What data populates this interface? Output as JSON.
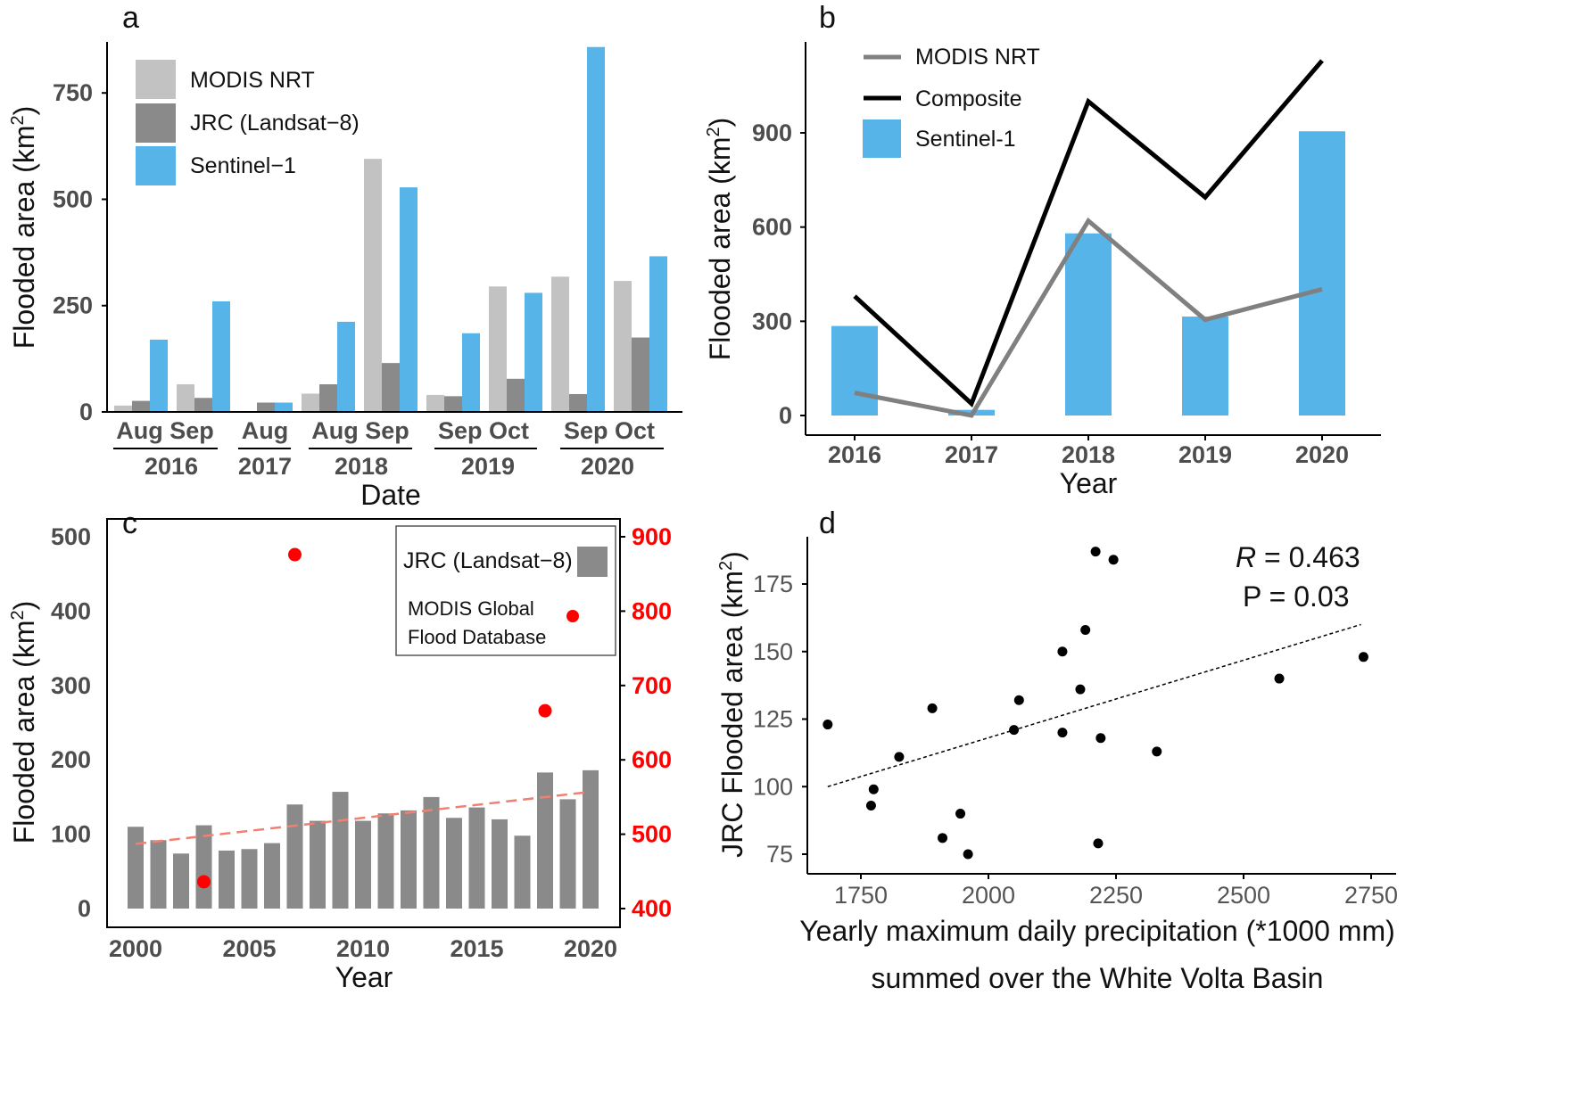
{
  "chart_data": [
    {
      "panel": "a",
      "type": "bar",
      "ylabel": "Flooded  area (km",
      "ylabel_sup": "2",
      "ylabel_close": ")",
      "xlabel": "Date",
      "ylim": [
        0,
        870
      ],
      "yticks": [
        0,
        250,
        500,
        750
      ],
      "legend": [
        "MODIS NRT",
        "JRC (Landsat−8)",
        "Sentinel−1"
      ],
      "colors": [
        "#c2c2c2",
        "#8a8a8a",
        "#56b4e9"
      ],
      "categories": [
        "Aug 2016",
        "Sep 2016",
        "Aug 2017",
        "Aug 2018",
        "Sep 2018",
        "Sep 2019",
        "Oct 2019",
        "Sep 2020",
        "Oct 2020"
      ],
      "series": [
        {
          "name": "MODIS NRT",
          "values": [
            15,
            65,
            0,
            43,
            595,
            40,
            295,
            318,
            308
          ]
        },
        {
          "name": "JRC (Landsat-8)",
          "values": [
            26,
            33,
            22,
            65,
            115,
            37,
            78,
            42,
            175
          ]
        },
        {
          "name": "Sentinel-1",
          "values": [
            170,
            260,
            22,
            212,
            528,
            185,
            280,
            858,
            366
          ]
        }
      ],
      "month_labels": [
        "Aug Sep",
        "Aug",
        "Aug Sep",
        "Sep Oct",
        "Sep Oct"
      ],
      "year_labels": [
        "2016",
        "2017",
        "2018",
        "2019",
        "2020"
      ]
    },
    {
      "panel": "b",
      "type": "bar+line",
      "ylabel": "Flooded area (km",
      "ylabel_sup": "2",
      "ylabel_close": ")",
      "xlabel": "Year",
      "ylim": [
        -30,
        1170
      ],
      "yticks": [
        0,
        300,
        600,
        900
      ],
      "categories": [
        "2016",
        "2017",
        "2018",
        "2019",
        "2020"
      ],
      "legend": [
        "MODIS NRT",
        "Composite",
        "Sentinel-1"
      ],
      "series": [
        {
          "name": "Sentinel-1",
          "kind": "bar",
          "color": "#56b4e9",
          "values": [
            285,
            18,
            580,
            315,
            905
          ]
        },
        {
          "name": "MODIS NRT",
          "kind": "line",
          "color": "#808080",
          "values": [
            72,
            0,
            620,
            305,
            402
          ]
        },
        {
          "name": "Composite",
          "kind": "line",
          "color": "#000000",
          "values": [
            380,
            38,
            1000,
            695,
            1130
          ]
        }
      ]
    },
    {
      "panel": "c",
      "type": "bar+scatter",
      "ylabel": "Flooded area (km",
      "ylabel_sup": "2",
      "ylabel_close": ")",
      "xlabel": "Year",
      "ylim": [
        -15,
        505
      ],
      "yticks": [
        0,
        100,
        200,
        300,
        400,
        500
      ],
      "y2ticks": [
        400,
        500,
        600,
        700,
        800,
        900
      ],
      "xticks": [
        2000,
        2005,
        2010,
        2015,
        2020
      ],
      "legend": [
        "JRC (Landsat−8)",
        "MODIS Global",
        "Flood Database"
      ],
      "bars": {
        "name": "JRC (Landsat-8)",
        "color": "#8a8a8a",
        "x": [
          2000,
          2001,
          2002,
          2003,
          2004,
          2005,
          2006,
          2007,
          2008,
          2009,
          2010,
          2011,
          2012,
          2013,
          2014,
          2015,
          2016,
          2017,
          2018,
          2019,
          2020
        ],
        "values": [
          110,
          92,
          74,
          112,
          78,
          80,
          88,
          140,
          118,
          157,
          118,
          128,
          132,
          150,
          122,
          136,
          120,
          98,
          183,
          147,
          186
        ]
      },
      "points": {
        "name": "MODIS Global Flood Database",
        "color": "#ff0000",
        "axis": "secondary",
        "x": [
          2003,
          2007,
          2018,
          2019
        ],
        "values": [
          436,
          876,
          666,
          793
        ]
      },
      "trend": {
        "color": "#f08070",
        "x": [
          2000,
          2020
        ],
        "values": [
          87,
          157
        ]
      }
    },
    {
      "panel": "d",
      "type": "scatter",
      "ylabel": "JRC Flooded area (km",
      "ylabel_sup": "2",
      "ylabel_close": ")",
      "xlabel": "Yearly maximum daily precipitation (*1000 mm)",
      "xlabel2": "summed over the White Volta Basin",
      "xlim": [
        1650,
        2760
      ],
      "ylim": [
        70,
        190
      ],
      "xticks": [
        1750,
        2000,
        2250,
        2500,
        2750
      ],
      "yticks": [
        75,
        100,
        125,
        150,
        175
      ],
      "annotation_r": "R",
      "annotation_r_val": " = 0.463",
      "annotation_p": "P = 0.03",
      "points": {
        "x": [
          1685,
          1770,
          1775,
          1825,
          1890,
          1910,
          1945,
          1960,
          2050,
          2060,
          2145,
          2145,
          2180,
          2190,
          2210,
          2215,
          2220,
          2245,
          2330,
          2570,
          2735
        ],
        "y": [
          123,
          93,
          99,
          111,
          129,
          81,
          90,
          75,
          121,
          132,
          150,
          120,
          136,
          158,
          187,
          79,
          118,
          184,
          113,
          140,
          148
        ]
      },
      "trend": {
        "x": [
          1685,
          2730
        ],
        "y": [
          100,
          160
        ]
      }
    }
  ]
}
